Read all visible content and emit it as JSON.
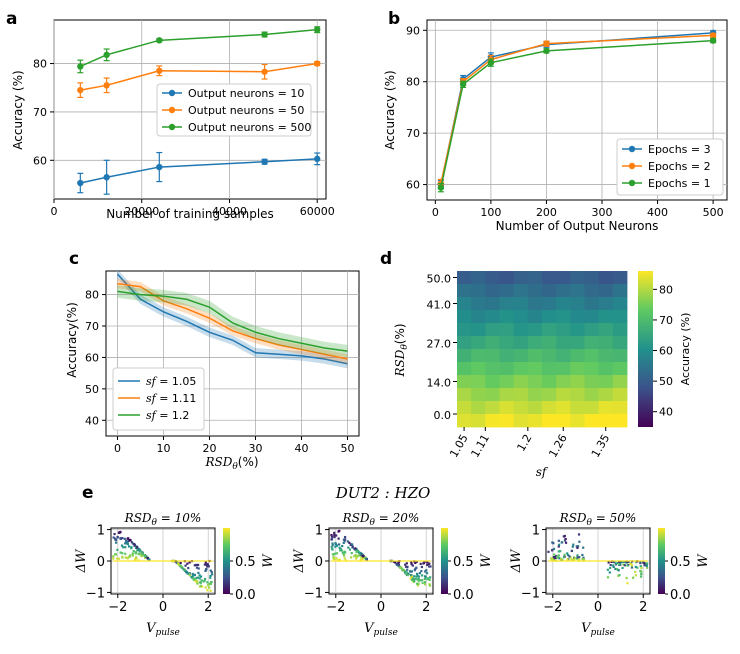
{
  "panel_labels": {
    "a": "a",
    "b": "b",
    "c": "c",
    "d": "d",
    "e": "e"
  },
  "colors": {
    "blue": "#1f77b4",
    "orange": "#ff7f0e",
    "green": "#2ca02c"
  },
  "chart_data": [
    {
      "id": "a",
      "type": "line",
      "xlabel": "Number of training samples",
      "ylabel": "Accuracy (%)",
      "xlim": [
        0,
        62000
      ],
      "ylim": [
        52,
        89
      ],
      "xticks": [
        0,
        20000,
        40000,
        60000
      ],
      "yticks": [
        60,
        70,
        80
      ],
      "x": [
        6000,
        12000,
        24000,
        48000,
        60000
      ],
      "series": [
        {
          "name": "Output neurons = 10",
          "color": "#1f77b4",
          "values": [
            55.3,
            56.5,
            58.6,
            59.7,
            60.3
          ],
          "err": [
            2.0,
            3.5,
            3.0,
            0.5,
            1.2
          ]
        },
        {
          "name": "Output neurons = 50",
          "color": "#ff7f0e",
          "values": [
            74.5,
            75.5,
            78.5,
            78.3,
            80.0
          ],
          "err": [
            1.5,
            1.5,
            1.0,
            1.5,
            0.4
          ]
        },
        {
          "name": "Output neurons = 500",
          "color": "#2ca02c",
          "values": [
            79.4,
            81.8,
            84.8,
            86.0,
            87.0
          ],
          "err": [
            1.3,
            1.2,
            0.3,
            0.5,
            0.6
          ]
        }
      ],
      "legend": "center-right"
    },
    {
      "id": "b",
      "type": "line",
      "xlabel": "Number of Output Neurons",
      "ylabel": "Accuracy (%)",
      "xlim": [
        -15,
        525
      ],
      "ylim": [
        57,
        92
      ],
      "xticks": [
        0,
        100,
        200,
        300,
        400,
        500
      ],
      "yticks": [
        60,
        70,
        80,
        90
      ],
      "x": [
        10,
        50,
        100,
        200,
        500
      ],
      "series": [
        {
          "name": "Epochs = 3",
          "color": "#1f77b4",
          "values": [
            60.0,
            80.5,
            84.8,
            87.2,
            89.5
          ],
          "err": [
            0.8,
            0.7,
            0.8,
            0.5,
            0.4
          ]
        },
        {
          "name": "Epochs = 2",
          "color": "#ff7f0e",
          "values": [
            60.2,
            80.0,
            84.3,
            87.4,
            89.0
          ],
          "err": [
            0.8,
            0.6,
            0.8,
            0.5,
            0.4
          ]
        },
        {
          "name": "Epochs = 1",
          "color": "#2ca02c",
          "values": [
            59.4,
            79.5,
            83.7,
            86.0,
            88.0
          ],
          "err": [
            0.8,
            0.6,
            0.7,
            0.4,
            0.4
          ]
        }
      ],
      "legend": "bottom-right"
    },
    {
      "id": "c",
      "type": "line",
      "xlabel": "RSD",
      "xlabel_sub": "θ",
      "xlabel_tail": "(%)",
      "ylabel": "Accuracy(%)",
      "xlim": [
        -2.5,
        52.5
      ],
      "ylim": [
        35,
        87.5
      ],
      "xticks": [
        0,
        10,
        20,
        30,
        40,
        50
      ],
      "yticks": [
        40,
        50,
        60,
        70,
        80
      ],
      "x": [
        0,
        5,
        10,
        15,
        20,
        25,
        30,
        35,
        40,
        45,
        50
      ],
      "series": [
        {
          "name": "sf = 1.05",
          "label_var": "sf",
          "label_val": " = 1.05",
          "color": "#1f77b4",
          "values": [
            86.5,
            78.5,
            74.5,
            71.5,
            68.0,
            65.5,
            61.5,
            61.0,
            60.5,
            59.5,
            58.0
          ],
          "band": 1.5
        },
        {
          "name": "sf = 1.11",
          "label_var": "sf",
          "label_val": " = 1.11",
          "color": "#ff7f0e",
          "values": [
            83.5,
            82.5,
            78.0,
            75.5,
            72.5,
            68.5,
            66.0,
            64.0,
            62.5,
            61.0,
            59.5
          ],
          "band": 1.5
        },
        {
          "name": "sf = 1.2",
          "label_var": "sf",
          "label_val": " = 1.2",
          "color": "#2ca02c",
          "values": [
            81.0,
            80.0,
            79.5,
            78.5,
            76.0,
            71.0,
            68.0,
            66.0,
            64.5,
            63.0,
            62.0
          ],
          "band": 2.0
        }
      ],
      "legend": "bottom-left"
    },
    {
      "id": "d",
      "type": "heatmap",
      "xlabel": "sf",
      "ylabel_main": "RSD",
      "ylabel_sub": "θ",
      "ylabel_tail": "(%)",
      "xtick_labels": [
        "1.05",
        "1.11",
        "1.2",
        "1.26",
        "1.35"
      ],
      "ytick_labels": [
        "50.0",
        "41.0",
        "27.0",
        "14.0",
        "0.0"
      ],
      "colorbar": {
        "label": "Accuracy (%)",
        "ticks": [
          40,
          50,
          60,
          70,
          80
        ],
        "min": 35,
        "max": 86
      }
    },
    {
      "id": "e",
      "type": "scatter",
      "title": "DUT2 : HZO",
      "xlabel": "V",
      "xlabel_sub": "pulse",
      "ylabel": "ΔW",
      "xlim": [
        -2.3,
        2.3
      ],
      "ylim": [
        -1.05,
        1.05
      ],
      "xticks": [
        -2,
        0,
        2
      ],
      "yticks": [
        -1,
        0,
        1
      ],
      "colorbar": {
        "label": "W",
        "ticks": [
          "0.0",
          "0.5"
        ]
      },
      "subplots": [
        {
          "title_main": "RSD",
          "title_sub": "θ",
          "title_tail": " = 10%",
          "noise": 10
        },
        {
          "title_main": "RSD",
          "title_sub": "θ",
          "title_tail": " = 20%",
          "noise": 20
        },
        {
          "title_main": "RSD",
          "title_sub": "θ",
          "title_tail": " = 50%",
          "noise": 50
        }
      ]
    }
  ]
}
